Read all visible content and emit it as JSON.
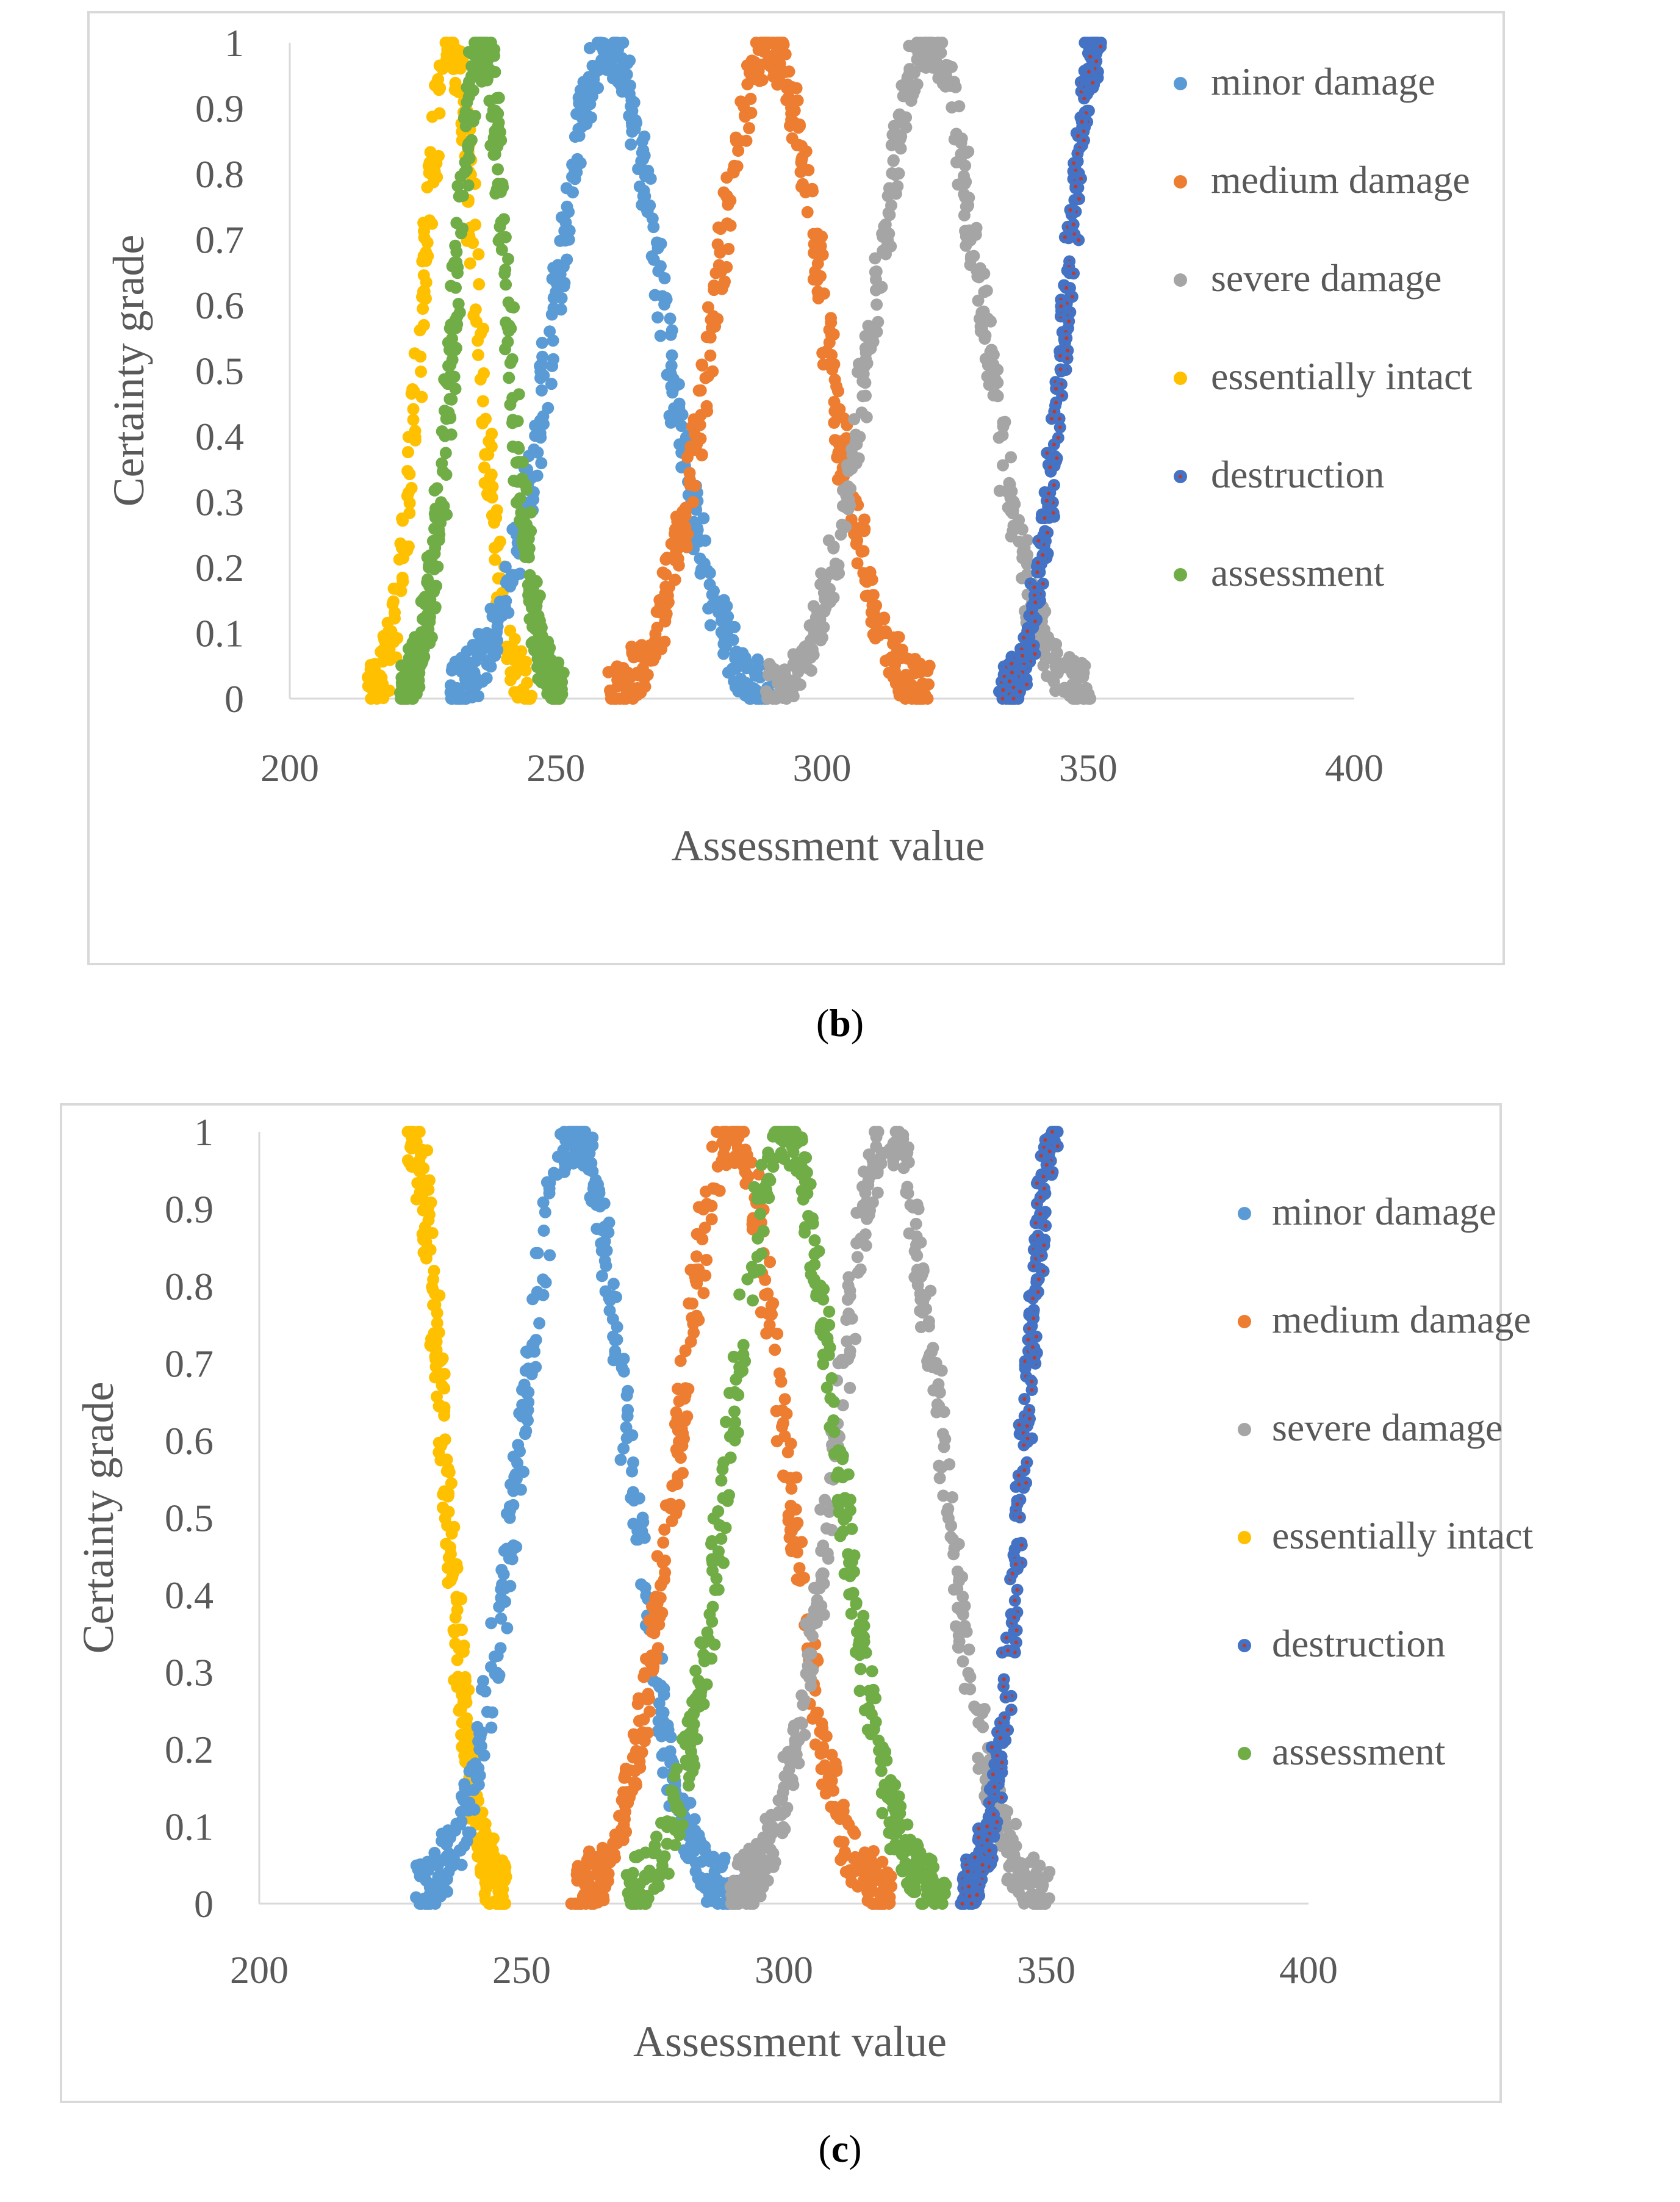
{
  "colors": {
    "minor": "#5b9bd5",
    "medium": "#ed7d31",
    "severe": "#a5a5a5",
    "intact": "#ffc000",
    "destruction": "#4472c4",
    "destruction_inner": "#c0392b",
    "assessment": "#70ad47",
    "frame": "#d9d9d9",
    "axis": "#d9d9d9",
    "text": "#595959"
  },
  "chart_data": [
    {
      "type": "scatter",
      "panel": "b",
      "caption_open": "(",
      "caption_letter": "b",
      "caption_close": ")",
      "xlabel": "Assessment value",
      "ylabel": "Certainty grade",
      "xlim": [
        200,
        400
      ],
      "ylim": [
        0,
        1
      ],
      "x_ticks": [
        "200",
        "250",
        "300",
        "350",
        "400"
      ],
      "y_ticks": [
        "0",
        "0.1",
        "0.2",
        "0.3",
        "0.4",
        "0.5",
        "0.6",
        "0.7",
        "0.8",
        "0.9",
        "1"
      ],
      "legend": [
        "minor damage",
        "medium damage",
        "severe damage",
        "essentially intact",
        "destruction",
        "assessment"
      ],
      "series": [
        {
          "name": "minor damage",
          "key": "minor",
          "center": 260,
          "spread": 10,
          "count": 460,
          "seed": 11
        },
        {
          "name": "medium damage",
          "key": "medium",
          "center": 290,
          "spread": 10,
          "count": 460,
          "seed": 23
        },
        {
          "name": "severe damage",
          "key": "severe",
          "center": 320,
          "spread": 10,
          "count": 460,
          "seed": 37
        },
        {
          "name": "essentially intact",
          "key": "intact",
          "center": 230,
          "spread": 5,
          "count": 260,
          "seed": 41
        },
        {
          "name": "destruction",
          "key": "destruction",
          "center": 352,
          "spread": 6,
          "count": 300,
          "seed": 53,
          "one_sided": "left"
        },
        {
          "name": "assessment",
          "key": "assessment",
          "center": 236,
          "spread": 5,
          "count": 460,
          "seed": 67
        }
      ]
    },
    {
      "type": "scatter",
      "panel": "c",
      "caption_open": "(",
      "caption_letter": "c",
      "caption_close": ")",
      "xlabel": "Assessment value",
      "ylabel": "Certainty grade",
      "xlim": [
        200,
        400
      ],
      "ylim": [
        0,
        1
      ],
      "x_ticks": [
        "200",
        "250",
        "300",
        "350",
        "400"
      ],
      "y_ticks": [
        "0",
        "0.1",
        "0.2",
        "0.3",
        "0.4",
        "0.5",
        "0.6",
        "0.7",
        "0.8",
        "0.9",
        "1"
      ],
      "legend": [
        "minor damage",
        "medium damage",
        "severe damage",
        "essentially intact",
        "destruction",
        "assessment"
      ],
      "series": [
        {
          "name": "minor damage",
          "key": "minor",
          "center": 260,
          "spread": 10,
          "count": 460,
          "seed": 11
        },
        {
          "name": "medium damage",
          "key": "medium",
          "center": 290,
          "spread": 10,
          "count": 460,
          "seed": 23
        },
        {
          "name": "severe damage",
          "key": "severe",
          "center": 320,
          "spread": 10,
          "count": 460,
          "seed": 37
        },
        {
          "name": "essentially intact",
          "key": "intact",
          "center": 229,
          "spread": 6,
          "count": 300,
          "seed": 41,
          "one_sided": "right"
        },
        {
          "name": "destruction",
          "key": "destruction",
          "center": 352,
          "spread": 6,
          "count": 300,
          "seed": 53,
          "one_sided": "left"
        },
        {
          "name": "assessment",
          "key": "assessment",
          "center": 300,
          "spread": 10,
          "count": 460,
          "seed": 67
        }
      ]
    }
  ]
}
